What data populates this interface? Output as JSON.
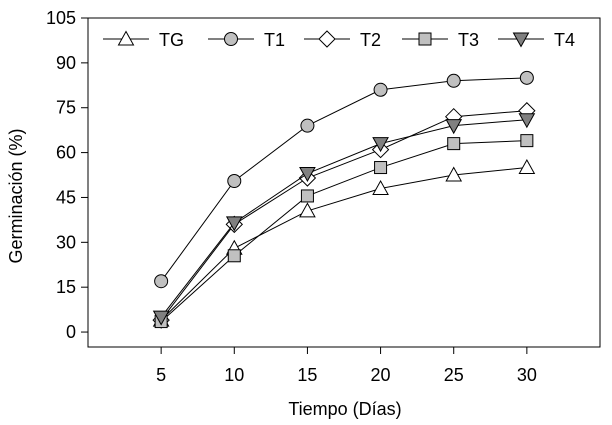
{
  "chart_data": {
    "type": "line",
    "xlabel": "Tiempo (Días)",
    "ylabel": "Germinación (%)",
    "x": [
      5,
      10,
      15,
      20,
      25,
      30
    ],
    "xlim": [
      0,
      35
    ],
    "ylim": [
      -5,
      105
    ],
    "xticks": [
      5,
      10,
      15,
      20,
      25,
      30
    ],
    "yticks": [
      0,
      15,
      30,
      45,
      60,
      75,
      90,
      105
    ],
    "grid": false,
    "legend_position": "top",
    "series": [
      {
        "name": "TG",
        "marker": "triangle-up",
        "fill": "#ffffff",
        "values": [
          4,
          28,
          40.5,
          48,
          52.5,
          55
        ]
      },
      {
        "name": "T1",
        "marker": "circle",
        "fill": "#c0c0c0",
        "values": [
          17,
          50.5,
          69,
          81,
          84,
          85
        ]
      },
      {
        "name": "T2",
        "marker": "diamond",
        "fill": "#ffffff",
        "values": [
          4,
          36,
          51.5,
          61,
          72,
          74
        ]
      },
      {
        "name": "T3",
        "marker": "square",
        "fill": "#c0c0c0",
        "values": [
          3.5,
          25.5,
          45.5,
          55,
          63,
          64
        ]
      },
      {
        "name": "T4",
        "marker": "triangle-down",
        "fill": "#808080",
        "values": [
          5,
          36.5,
          53,
          63,
          69,
          71
        ]
      }
    ]
  }
}
